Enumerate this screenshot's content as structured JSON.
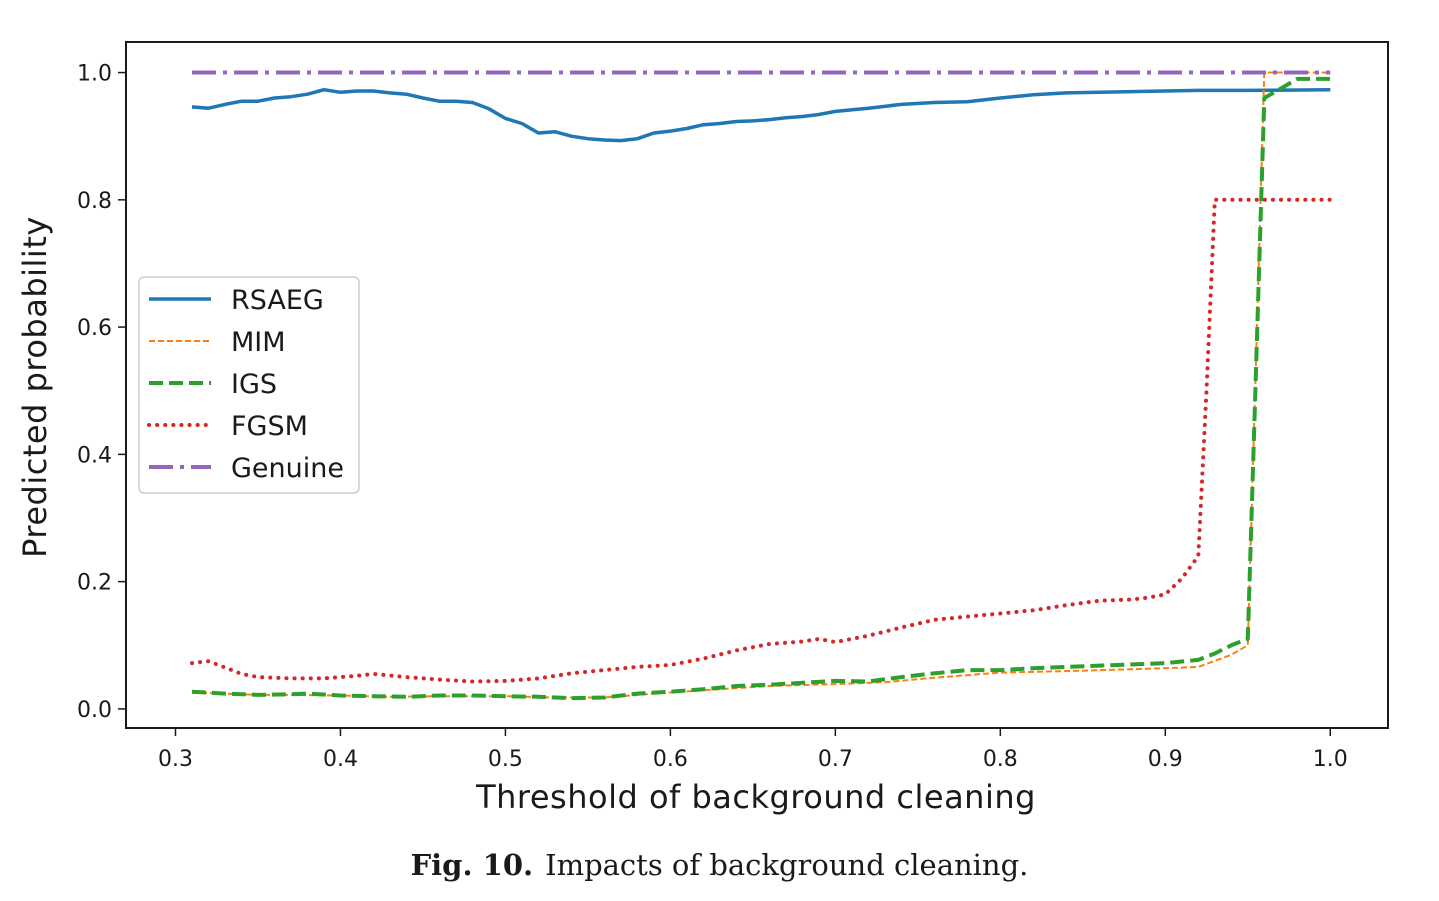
{
  "caption": {
    "label": "Fig. 10.",
    "text": "Impacts of background cleaning."
  },
  "chart_data": {
    "type": "line",
    "title": "",
    "xlabel": "Threshold of background cleaning",
    "ylabel": "Predicted probability",
    "xlim": [
      0.27,
      1.035
    ],
    "ylim": [
      -0.03,
      1.048
    ],
    "xticks": [
      "0.3",
      "0.4",
      "0.5",
      "0.6",
      "0.7",
      "0.8",
      "0.9",
      "1.0"
    ],
    "yticks": [
      "0.0",
      "0.2",
      "0.4",
      "0.6",
      "0.8",
      "1.0"
    ],
    "grid": false,
    "legend_position": "center-left",
    "series": [
      {
        "name": "RSAEG",
        "color": "#1f77b4",
        "style": "solid",
        "x": [
          0.31,
          0.32,
          0.33,
          0.34,
          0.35,
          0.36,
          0.37,
          0.38,
          0.39,
          0.4,
          0.41,
          0.42,
          0.43,
          0.44,
          0.45,
          0.46,
          0.47,
          0.48,
          0.49,
          0.5,
          0.51,
          0.52,
          0.53,
          0.54,
          0.55,
          0.56,
          0.57,
          0.58,
          0.59,
          0.6,
          0.61,
          0.62,
          0.63,
          0.64,
          0.65,
          0.66,
          0.67,
          0.68,
          0.69,
          0.7,
          0.72,
          0.74,
          0.76,
          0.78,
          0.8,
          0.82,
          0.84,
          0.86,
          0.88,
          0.9,
          0.92,
          0.95,
          1.0
        ],
        "y": [
          0.946,
          0.944,
          0.95,
          0.955,
          0.955,
          0.96,
          0.962,
          0.966,
          0.973,
          0.969,
          0.971,
          0.971,
          0.968,
          0.966,
          0.96,
          0.955,
          0.955,
          0.953,
          0.943,
          0.928,
          0.92,
          0.905,
          0.907,
          0.9,
          0.896,
          0.894,
          0.893,
          0.896,
          0.905,
          0.908,
          0.912,
          0.918,
          0.92,
          0.923,
          0.924,
          0.926,
          0.929,
          0.931,
          0.934,
          0.939,
          0.944,
          0.95,
          0.953,
          0.954,
          0.96,
          0.965,
          0.968,
          0.969,
          0.97,
          0.971,
          0.972,
          0.972,
          0.973
        ]
      },
      {
        "name": "MIM",
        "color": "#ff7f0e",
        "style": "thin-dashed",
        "x": [
          0.31,
          0.33,
          0.35,
          0.37,
          0.4,
          0.43,
          0.46,
          0.5,
          0.53,
          0.56,
          0.6,
          0.63,
          0.66,
          0.7,
          0.73,
          0.76,
          0.8,
          0.85,
          0.9,
          0.92,
          0.94,
          0.95,
          0.96,
          0.97,
          1.0
        ],
        "y": [
          0.026,
          0.024,
          0.022,
          0.022,
          0.021,
          0.019,
          0.02,
          0.02,
          0.018,
          0.018,
          0.026,
          0.031,
          0.036,
          0.039,
          0.042,
          0.049,
          0.057,
          0.06,
          0.064,
          0.066,
          0.085,
          0.1,
          1.0,
          1.0,
          1.0
        ]
      },
      {
        "name": "IGS",
        "color": "#2ca02c",
        "style": "dashed",
        "x": [
          0.31,
          0.33,
          0.35,
          0.37,
          0.38,
          0.4,
          0.42,
          0.44,
          0.46,
          0.48,
          0.5,
          0.52,
          0.54,
          0.56,
          0.58,
          0.6,
          0.62,
          0.64,
          0.66,
          0.68,
          0.7,
          0.72,
          0.74,
          0.76,
          0.78,
          0.8,
          0.82,
          0.84,
          0.86,
          0.88,
          0.9,
          0.92,
          0.93,
          0.94,
          0.95,
          0.96,
          0.97,
          0.98,
          1.0
        ],
        "y": [
          0.027,
          0.024,
          0.022,
          0.023,
          0.024,
          0.021,
          0.02,
          0.019,
          0.021,
          0.021,
          0.02,
          0.019,
          0.017,
          0.018,
          0.024,
          0.027,
          0.031,
          0.036,
          0.038,
          0.041,
          0.044,
          0.043,
          0.05,
          0.056,
          0.061,
          0.061,
          0.064,
          0.066,
          0.068,
          0.07,
          0.072,
          0.077,
          0.087,
          0.1,
          0.11,
          0.96,
          0.975,
          0.99,
          0.99
        ]
      },
      {
        "name": "FGSM",
        "color": "#d62728",
        "style": "dotted",
        "x": [
          0.31,
          0.32,
          0.33,
          0.34,
          0.35,
          0.37,
          0.39,
          0.41,
          0.42,
          0.44,
          0.46,
          0.48,
          0.5,
          0.52,
          0.54,
          0.56,
          0.58,
          0.6,
          0.62,
          0.64,
          0.66,
          0.68,
          0.69,
          0.7,
          0.72,
          0.74,
          0.76,
          0.78,
          0.8,
          0.82,
          0.84,
          0.86,
          0.88,
          0.89,
          0.9,
          0.91,
          0.92,
          0.925,
          0.93,
          0.94,
          0.95,
          1.0
        ],
        "y": [
          0.072,
          0.075,
          0.065,
          0.055,
          0.05,
          0.048,
          0.048,
          0.052,
          0.055,
          0.05,
          0.046,
          0.043,
          0.044,
          0.048,
          0.056,
          0.061,
          0.066,
          0.069,
          0.079,
          0.092,
          0.102,
          0.106,
          0.11,
          0.105,
          0.115,
          0.128,
          0.14,
          0.145,
          0.15,
          0.155,
          0.163,
          0.17,
          0.172,
          0.175,
          0.18,
          0.205,
          0.24,
          0.5,
          0.8,
          0.8,
          0.8,
          0.8
        ]
      },
      {
        "name": "Genuine",
        "color": "#9467bd",
        "style": "dashdot",
        "x": [
          0.31,
          1.0
        ],
        "y": [
          1.0,
          1.0
        ]
      }
    ]
  }
}
